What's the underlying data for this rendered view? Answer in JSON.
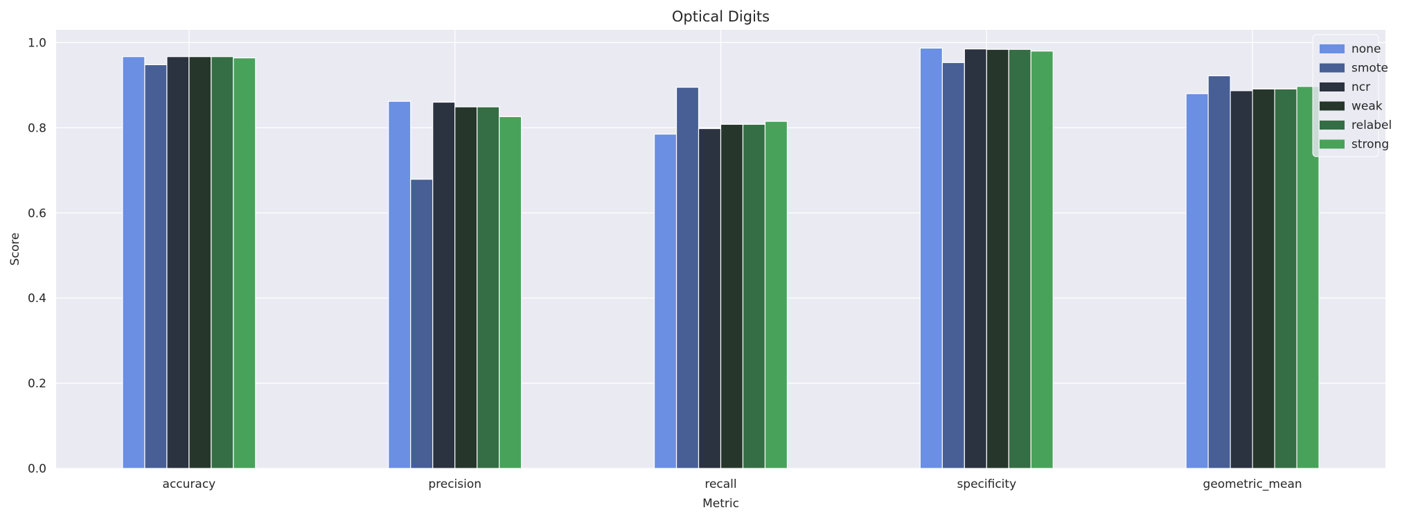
{
  "chart_data": {
    "type": "bar",
    "title": "Optical Digits",
    "xlabel": "Metric",
    "ylabel": "Score",
    "ylim": [
      0,
      1.03
    ],
    "yticks": [
      "0.0",
      "0.2",
      "0.4",
      "0.6",
      "0.8",
      "1.0"
    ],
    "grid": true,
    "legend_position": "top-right",
    "categories": [
      "accuracy",
      "precision",
      "recall",
      "specificity",
      "geometric_mean"
    ],
    "series": [
      {
        "name": "none",
        "color": "#6a8fe3",
        "values": [
          0.967,
          0.862,
          0.785,
          0.987,
          0.88
        ]
      },
      {
        "name": "smote",
        "color": "#475f94",
        "values": [
          0.948,
          0.679,
          0.895,
          0.953,
          0.922
        ]
      },
      {
        "name": "ncr",
        "color": "#2b3240",
        "values": [
          0.967,
          0.86,
          0.798,
          0.985,
          0.887
        ]
      },
      {
        "name": "weak",
        "color": "#26362b",
        "values": [
          0.967,
          0.849,
          0.808,
          0.984,
          0.891
        ]
      },
      {
        "name": "relabel",
        "color": "#356e44",
        "values": [
          0.967,
          0.849,
          0.808,
          0.984,
          0.891
        ]
      },
      {
        "name": "strong",
        "color": "#49a25a",
        "values": [
          0.964,
          0.826,
          0.815,
          0.98,
          0.897
        ]
      }
    ]
  }
}
